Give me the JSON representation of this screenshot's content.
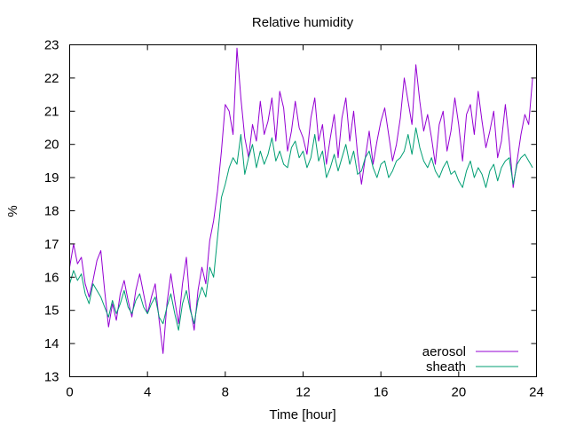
{
  "chart_data": {
    "type": "line",
    "title": "Relative humidity",
    "xlabel": "Time [hour]",
    "ylabel": "%",
    "xlim": [
      0,
      24
    ],
    "ylim": [
      13,
      23
    ],
    "xticks": [
      0,
      4,
      8,
      12,
      16,
      20,
      24
    ],
    "xtick_labels": [
      "0",
      "4",
      "8",
      "12",
      "16",
      "20",
      "24"
    ],
    "yticks": [
      13,
      14,
      15,
      16,
      17,
      18,
      19,
      20,
      21,
      22,
      23
    ],
    "ytick_labels": [
      "13",
      "14",
      "15",
      "16",
      "17",
      "18",
      "19",
      "20",
      "21",
      "22",
      "23"
    ],
    "grid": false,
    "legend_position": "bottom-right",
    "series": [
      {
        "name": "aerosol",
        "color": "#9400d3",
        "x": [
          0,
          0.2,
          0.4,
          0.6,
          0.8,
          1,
          1.2,
          1.4,
          1.6,
          1.8,
          2,
          2.2,
          2.4,
          2.6,
          2.8,
          3,
          3.2,
          3.4,
          3.6,
          3.8,
          4,
          4.2,
          4.4,
          4.6,
          4.8,
          5,
          5.2,
          5.4,
          5.6,
          5.8,
          6,
          6.2,
          6.4,
          6.6,
          6.8,
          7,
          7.2,
          7.4,
          7.6,
          7.8,
          8,
          8.2,
          8.4,
          8.6,
          8.8,
          9,
          9.2,
          9.4,
          9.6,
          9.8,
          10,
          10.2,
          10.4,
          10.6,
          10.8,
          11,
          11.2,
          11.4,
          11.6,
          11.8,
          12,
          12.2,
          12.4,
          12.6,
          12.8,
          13,
          13.2,
          13.4,
          13.6,
          13.8,
          14,
          14.2,
          14.4,
          14.6,
          14.8,
          15,
          15.2,
          15.4,
          15.6,
          15.8,
          16,
          16.2,
          16.4,
          16.6,
          16.8,
          17,
          17.2,
          17.4,
          17.6,
          17.8,
          18,
          18.2,
          18.4,
          18.6,
          18.8,
          19,
          19.2,
          19.4,
          19.6,
          19.8,
          20,
          20.2,
          20.4,
          20.6,
          20.8,
          21,
          21.2,
          21.4,
          21.6,
          21.8,
          22,
          22.2,
          22.4,
          22.6,
          22.8,
          23,
          23.2,
          23.4,
          23.6,
          23.8
        ],
        "y": [
          16.3,
          17.0,
          16.4,
          16.6,
          15.8,
          15.4,
          15.9,
          16.5,
          16.8,
          15.6,
          14.5,
          15.2,
          14.7,
          15.5,
          15.9,
          15.3,
          14.8,
          15.6,
          16.1,
          15.5,
          14.9,
          15.4,
          15.8,
          14.7,
          13.7,
          15.2,
          16.1,
          15.3,
          14.6,
          15.8,
          16.6,
          15.1,
          14.4,
          15.6,
          16.3,
          15.8,
          17.1,
          17.7,
          18.6,
          19.8,
          21.2,
          21.0,
          20.3,
          22.9,
          21.4,
          20.2,
          19.6,
          20.6,
          20.1,
          21.3,
          20.3,
          20.7,
          21.4,
          20.1,
          21.6,
          21.1,
          19.8,
          20.4,
          21.3,
          20.5,
          20.2,
          19.7,
          20.8,
          21.4,
          20.1,
          20.6,
          19.4,
          20.2,
          20.9,
          19.6,
          20.8,
          21.4,
          20.1,
          21.0,
          19.7,
          18.8,
          19.6,
          20.4,
          19.4,
          20.1,
          20.7,
          21.1,
          20.3,
          19.5,
          20.0,
          20.8,
          22.0,
          21.3,
          20.6,
          22.4,
          21.3,
          20.4,
          20.9,
          20.2,
          19.4,
          20.6,
          21.0,
          19.8,
          20.4,
          21.4,
          20.6,
          19.5,
          20.9,
          21.2,
          20.3,
          21.6,
          20.7,
          19.9,
          20.4,
          21.0,
          19.6,
          20.1,
          21.2,
          20.1,
          18.7,
          19.5,
          20.3,
          20.9,
          20.6,
          22.0
        ]
      },
      {
        "name": "sheath",
        "color": "#009e73",
        "x": [
          0,
          0.2,
          0.4,
          0.6,
          0.8,
          1,
          1.2,
          1.4,
          1.6,
          1.8,
          2,
          2.2,
          2.4,
          2.6,
          2.8,
          3,
          3.2,
          3.4,
          3.6,
          3.8,
          4,
          4.2,
          4.4,
          4.6,
          4.8,
          5,
          5.2,
          5.4,
          5.6,
          5.8,
          6,
          6.2,
          6.4,
          6.6,
          6.8,
          7,
          7.2,
          7.4,
          7.6,
          7.8,
          8,
          8.2,
          8.4,
          8.6,
          8.8,
          9,
          9.2,
          9.4,
          9.6,
          9.8,
          10,
          10.2,
          10.4,
          10.6,
          10.8,
          11,
          11.2,
          11.4,
          11.6,
          11.8,
          12,
          12.2,
          12.4,
          12.6,
          12.8,
          13,
          13.2,
          13.4,
          13.6,
          13.8,
          14,
          14.2,
          14.4,
          14.6,
          14.8,
          15,
          15.2,
          15.4,
          15.6,
          15.8,
          16,
          16.2,
          16.4,
          16.6,
          16.8,
          17,
          17.2,
          17.4,
          17.6,
          17.8,
          18,
          18.2,
          18.4,
          18.6,
          18.8,
          19,
          19.2,
          19.4,
          19.6,
          19.8,
          20,
          20.2,
          20.4,
          20.6,
          20.8,
          21,
          21.2,
          21.4,
          21.6,
          21.8,
          22,
          22.2,
          22.4,
          22.6,
          22.8,
          23,
          23.2,
          23.4,
          23.6,
          23.8
        ],
        "y": [
          15.8,
          16.2,
          15.9,
          16.1,
          15.5,
          15.2,
          15.8,
          15.6,
          15.4,
          15.1,
          14.8,
          15.3,
          14.9,
          15.2,
          15.6,
          15.1,
          14.9,
          15.3,
          15.5,
          15.1,
          14.9,
          15.2,
          15.4,
          14.8,
          14.6,
          15.1,
          15.5,
          14.9,
          14.4,
          15.2,
          15.6,
          15.0,
          14.6,
          15.3,
          15.7,
          15.4,
          16.3,
          16.0,
          17.2,
          18.4,
          18.8,
          19.3,
          19.6,
          19.4,
          20.3,
          19.1,
          19.6,
          20.0,
          19.3,
          19.8,
          19.4,
          19.7,
          20.2,
          19.5,
          19.8,
          19.4,
          19.3,
          19.9,
          20.1,
          19.6,
          19.8,
          19.3,
          19.6,
          20.3,
          19.5,
          19.8,
          19.0,
          19.3,
          19.7,
          19.2,
          19.6,
          20.0,
          19.4,
          19.8,
          19.1,
          19.2,
          19.6,
          19.8,
          19.3,
          19.0,
          19.4,
          19.5,
          19.0,
          19.2,
          19.5,
          19.6,
          19.8,
          20.3,
          19.7,
          20.5,
          19.9,
          19.5,
          19.3,
          19.6,
          19.2,
          19.0,
          19.3,
          19.5,
          19.1,
          19.2,
          18.9,
          18.7,
          19.2,
          19.5,
          19.0,
          19.3,
          19.1,
          18.7,
          19.2,
          19.4,
          18.9,
          19.3,
          19.5,
          19.6,
          18.8,
          19.4,
          19.6,
          19.7,
          19.5,
          19.3
        ]
      }
    ]
  }
}
